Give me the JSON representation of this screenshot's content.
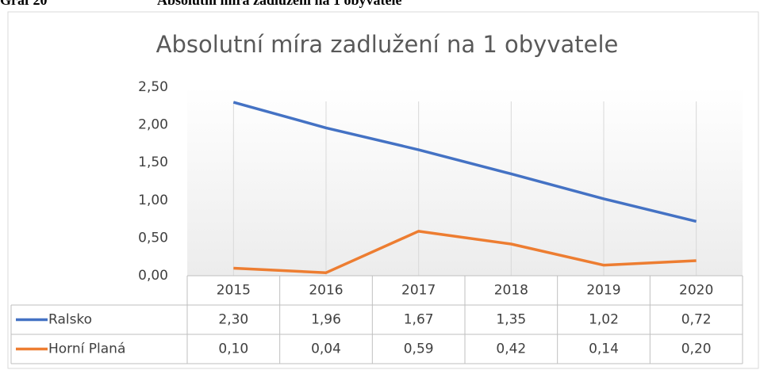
{
  "figure_label": "Graf 20",
  "figure_caption": "Absolutní míra zadlužení na 1 obyvatele",
  "chart_data": {
    "type": "line",
    "title": "Absolutní míra zadlužení na 1 obyvatele",
    "categories": [
      "2015",
      "2016",
      "2017",
      "2018",
      "2019",
      "2020"
    ],
    "series": [
      {
        "name": "Ralsko",
        "color": "#4472c4",
        "values": [
          2.3,
          1.96,
          1.67,
          1.35,
          1.02,
          0.72
        ],
        "value_labels": [
          "2,30",
          "1,96",
          "1,67",
          "1,35",
          "1,02",
          "0,72"
        ]
      },
      {
        "name": "Horní Planá",
        "color": "#ed7d31",
        "values": [
          0.1,
          0.04,
          0.59,
          0.42,
          0.14,
          0.2
        ],
        "value_labels": [
          "0,10",
          "0,04",
          "0,59",
          "0,42",
          "0,14",
          "0,20"
        ]
      }
    ],
    "ylim": [
      0,
      2.5
    ],
    "yticks": [
      {
        "value": 0,
        "label": "0,00"
      },
      {
        "value": 0.5,
        "label": "0,50"
      },
      {
        "value": 1,
        "label": "1,00"
      },
      {
        "value": 1.5,
        "label": "1,50"
      },
      {
        "value": 2,
        "label": "2,00"
      },
      {
        "value": 2.5,
        "label": "2,50"
      }
    ],
    "grid": true
  }
}
